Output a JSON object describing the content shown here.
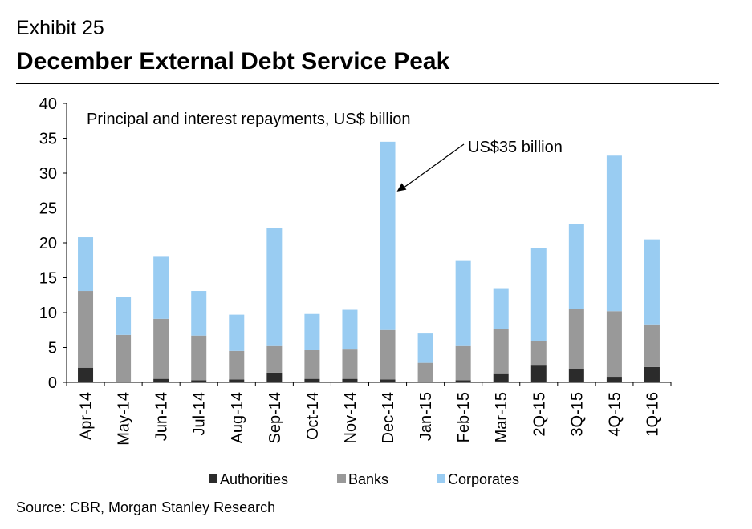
{
  "header": {
    "exhibit": "Exhibit 25",
    "title": "December External Debt Service Peak"
  },
  "footer": {
    "source": "Source: CBR, Morgan Stanley Research"
  },
  "chart_data": {
    "type": "bar",
    "stacked": true,
    "subtitle": "Principal and interest repayments, US$ billion",
    "categories": [
      "Apr-14",
      "May-14",
      "Jun-14",
      "Jul-14",
      "Aug-14",
      "Sep-14",
      "Oct-14",
      "Nov-14",
      "Dec-14",
      "Jan-15",
      "Feb-15",
      "Mar-15",
      "2Q-15",
      "3Q-15",
      "4Q-15",
      "1Q-16"
    ],
    "series": [
      {
        "name": "Authorities",
        "color": "#2b2b2b",
        "values": [
          2.1,
          0.1,
          0.5,
          0.3,
          0.4,
          1.4,
          0.5,
          0.5,
          0.4,
          0.1,
          0.3,
          1.3,
          2.4,
          1.9,
          0.8,
          2.2
        ]
      },
      {
        "name": "Banks",
        "color": "#999999",
        "values": [
          11.0,
          6.7,
          8.6,
          6.4,
          4.1,
          3.8,
          4.1,
          4.2,
          7.1,
          2.7,
          4.9,
          6.4,
          3.5,
          8.6,
          9.4,
          6.1
        ]
      },
      {
        "name": "Corporates",
        "color": "#99ccf2",
        "values": [
          7.7,
          5.4,
          8.9,
          6.4,
          5.2,
          16.9,
          5.2,
          5.7,
          27.0,
          4.2,
          12.2,
          5.8,
          13.3,
          12.2,
          22.3,
          12.2
        ]
      }
    ],
    "ylim": [
      0,
      40
    ],
    "yticks": [
      0,
      5,
      10,
      15,
      20,
      25,
      30,
      35,
      40
    ],
    "annotation": {
      "text": "US$35 billion",
      "target_category": "Dec-14",
      "target_value": 34.5
    },
    "legend_position": "bottom",
    "grid": false
  }
}
